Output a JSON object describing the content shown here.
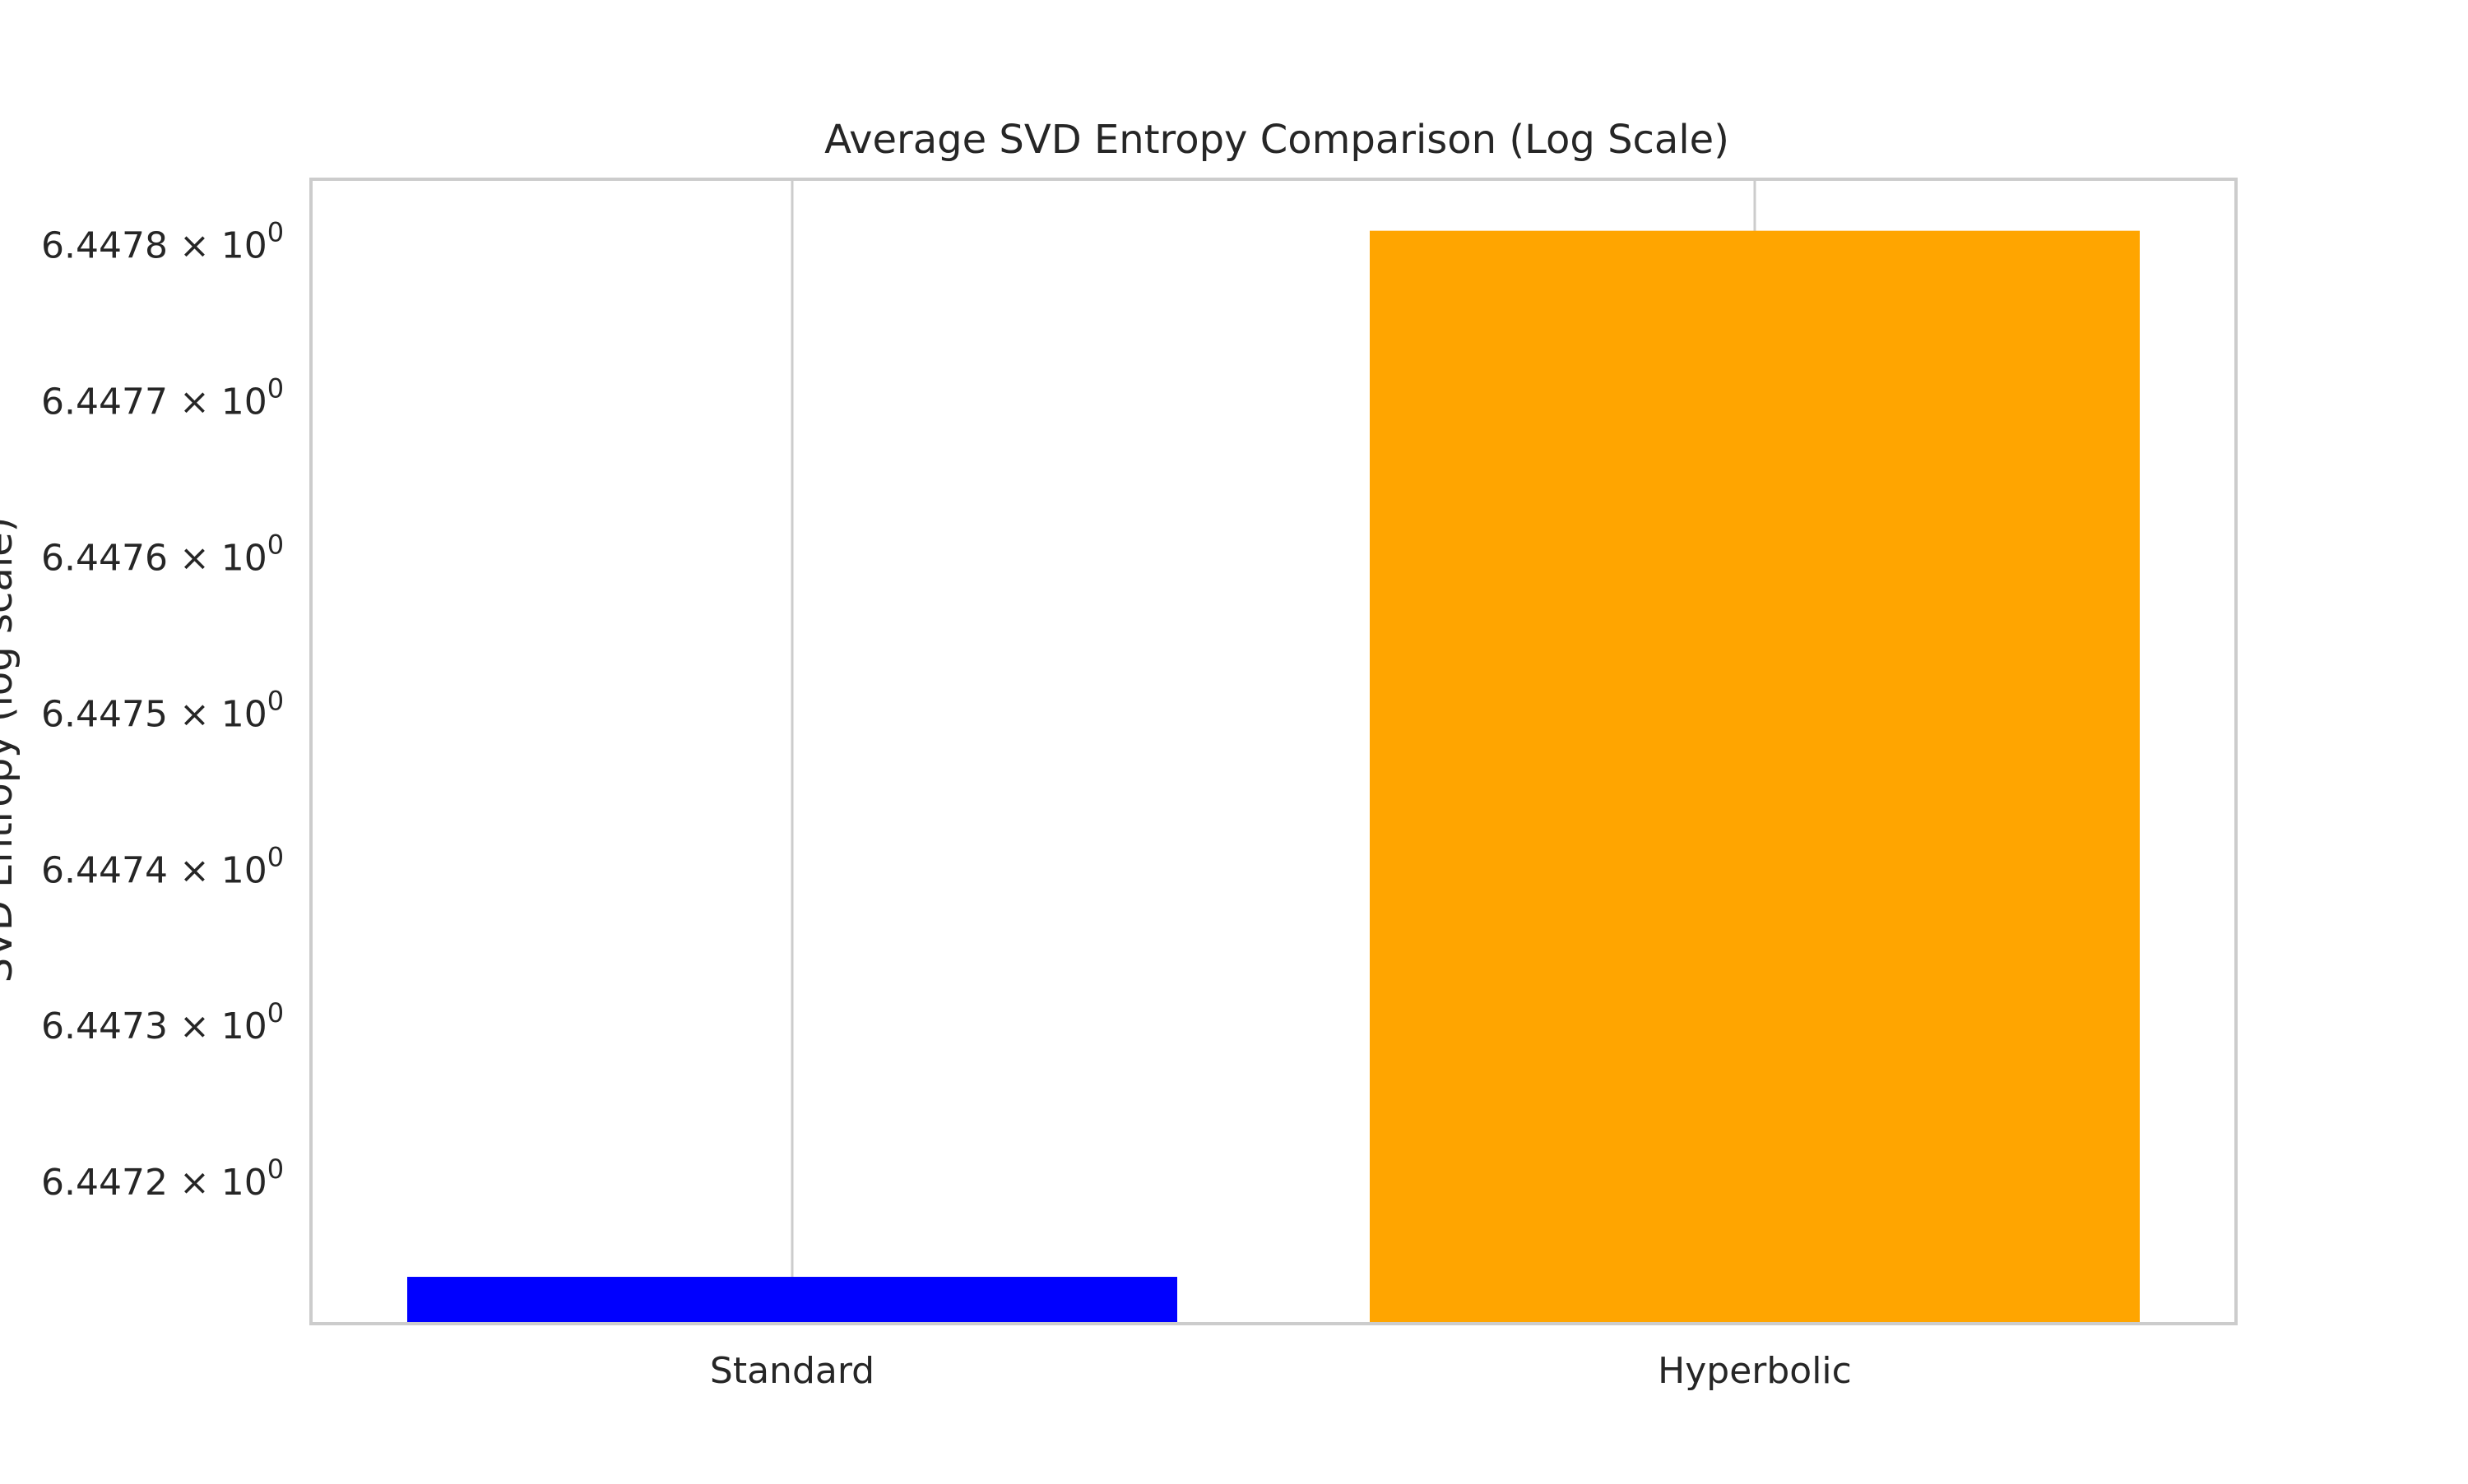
{
  "chart_data": {
    "type": "bar",
    "title": "Average SVD Entropy Comparison (Log Scale)",
    "xlabel": "",
    "ylabel": "SVD Entropy (log scale)",
    "yscale": "log",
    "categories": [
      "Standard",
      "Hyperbolic"
    ],
    "values": [
      6.44714,
      6.44781
    ],
    "colors": [
      "#0000ff",
      "#ffa500"
    ],
    "ylim": [
      6.44711,
      6.447843
    ],
    "yticks": [
      6.4472,
      6.4473,
      6.4474,
      6.4475,
      6.4476,
      6.4477,
      6.4478
    ],
    "ytick_labels": [
      {
        "mantissa": "6.4472",
        "times": "×",
        "base": "10",
        "exponent": "0"
      },
      {
        "mantissa": "6.4473",
        "times": "×",
        "base": "10",
        "exponent": "0"
      },
      {
        "mantissa": "6.4474",
        "times": "×",
        "base": "10",
        "exponent": "0"
      },
      {
        "mantissa": "6.4475",
        "times": "×",
        "base": "10",
        "exponent": "0"
      },
      {
        "mantissa": "6.4476",
        "times": "×",
        "base": "10",
        "exponent": "0"
      },
      {
        "mantissa": "6.4477",
        "times": "×",
        "base": "10",
        "exponent": "0"
      },
      {
        "mantissa": "6.4478",
        "times": "×",
        "base": "10",
        "exponent": "0"
      }
    ],
    "grid": "vertical",
    "legend": "none"
  }
}
